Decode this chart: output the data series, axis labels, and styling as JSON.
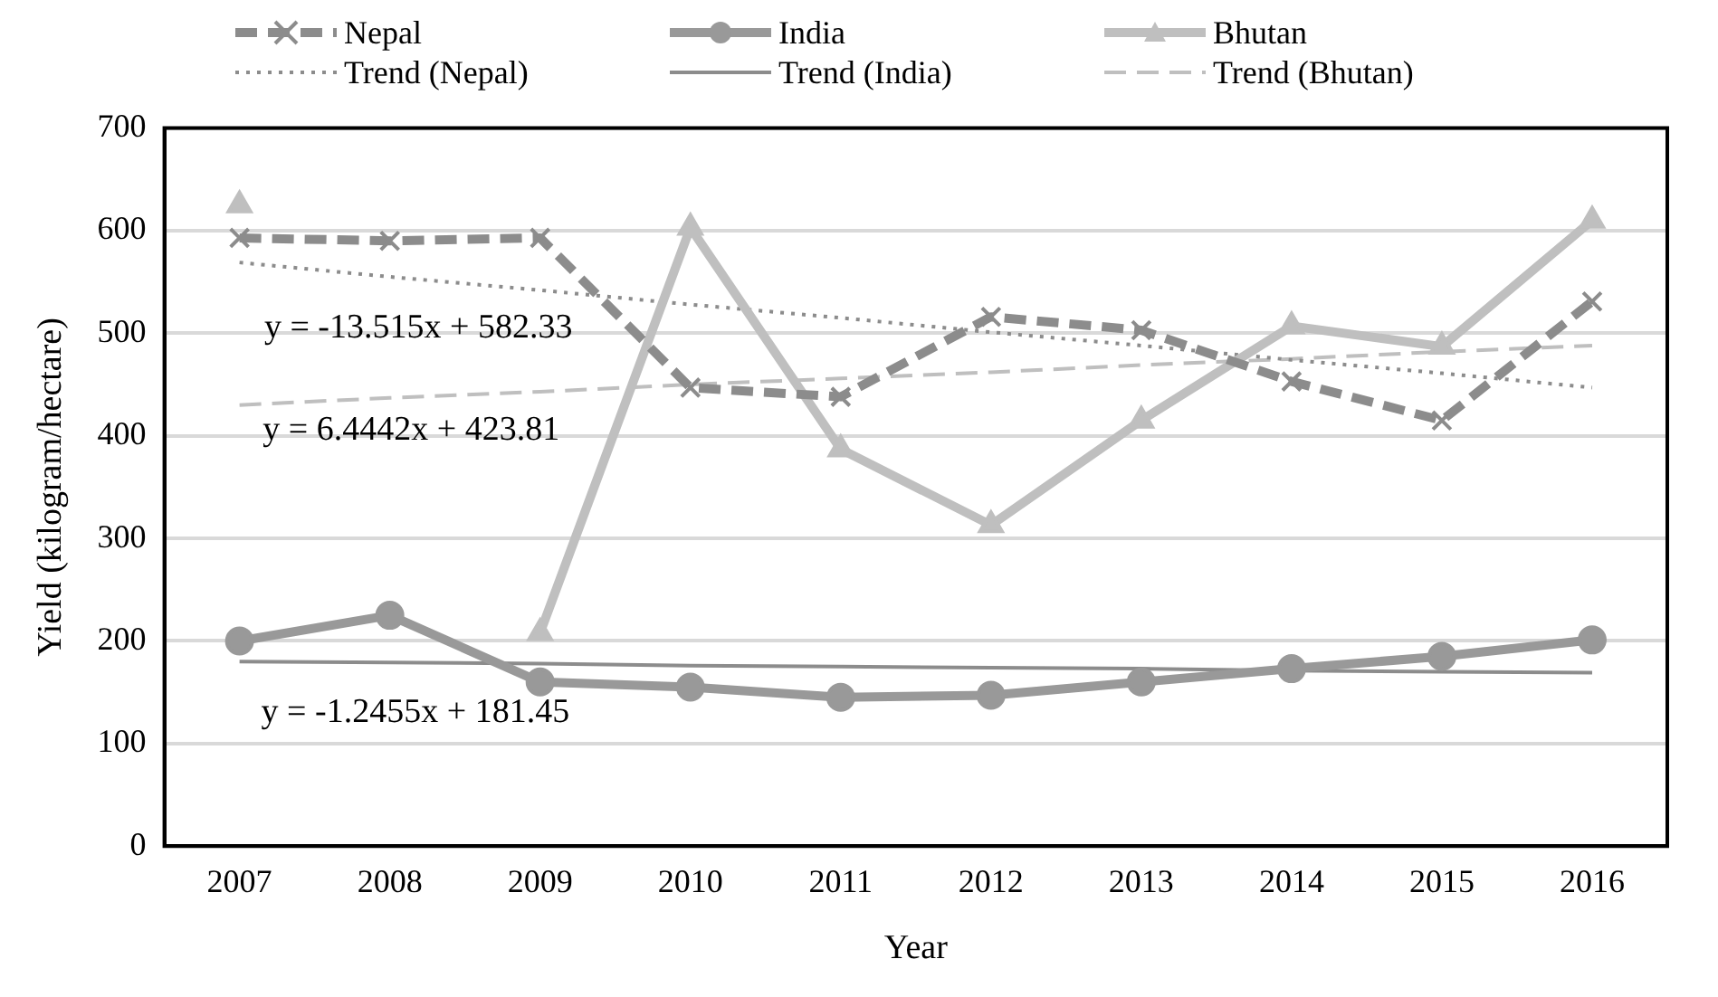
{
  "chart_data": {
    "type": "line",
    "xlabel": "Year",
    "ylabel": "Yield (kilogram/hectare)",
    "categories": [
      "2007",
      "2008",
      "2009",
      "2010",
      "2011",
      "2012",
      "2013",
      "2014",
      "2015",
      "2016"
    ],
    "series": [
      {
        "name": "Nepal",
        "color": "#8c8c8c",
        "marker": "cross",
        "line_style": "dashed",
        "values": [
          593,
          590,
          593,
          447,
          438,
          516,
          503,
          453,
          415,
          531
        ]
      },
      {
        "name": "India",
        "color": "#999999",
        "marker": "circle",
        "line_style": "solid",
        "values": [
          200,
          225,
          160,
          155,
          145,
          147,
          160,
          173,
          185,
          201
        ]
      },
      {
        "name": "Bhutan",
        "color": "#bfbfbf",
        "marker": "triangle",
        "line_style": "solid",
        "values": [
          625,
          null,
          208,
          603,
          387,
          313,
          415,
          507,
          487,
          610
        ]
      },
      {
        "name": "Trend (Nepal)",
        "color": "#8c8c8c",
        "marker": "none",
        "line_style": "dotted",
        "values": [
          569,
          555,
          542,
          528,
          515,
          501,
          488,
          474,
          461,
          447
        ]
      },
      {
        "name": "Trend (India)",
        "color": "#8c8c8c",
        "marker": "none",
        "line_style": "solid",
        "values": [
          180,
          179,
          178,
          176,
          175,
          174,
          173,
          171,
          170,
          169
        ]
      },
      {
        "name": "Trend (Bhutan)",
        "color": "#bfbfbf",
        "marker": "none",
        "line_style": "dashed",
        "values": [
          430,
          437,
          443,
          450,
          456,
          462,
          469,
          475,
          482,
          488
        ]
      }
    ],
    "ylim": [
      0,
      700
    ],
    "yticks": [
      0,
      100,
      200,
      300,
      400,
      500,
      600,
      700
    ],
    "grid": "y",
    "legend": "top",
    "annotations": [
      "y = -13.515x + 582.33",
      "y = 6.4442x + 423.81",
      "y = -1.2455x + 181.45"
    ]
  }
}
